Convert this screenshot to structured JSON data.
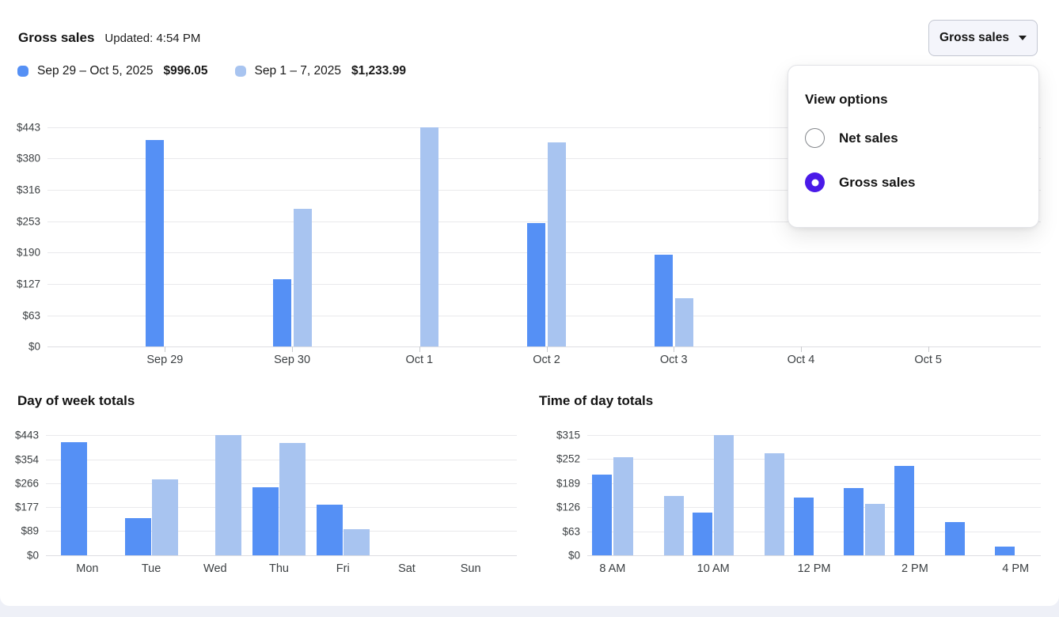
{
  "page": {
    "title": "Gross sales",
    "updated": "Updated: 4:54 PM"
  },
  "legend": {
    "items": [
      {
        "label": "Sep 29 – Oct 5, 2025",
        "value": "$996.05",
        "color": "#5590F5"
      },
      {
        "label": "Sep 1 – 7, 2025",
        "value": "$1,233.99",
        "color": "#A8C4F0"
      }
    ]
  },
  "view_selector": {
    "button_label": "Gross sales",
    "caret_icon": "caret-down-icon",
    "panel_title": "View options",
    "selected_color": "#4A1AE8",
    "options": [
      {
        "label": "Net sales",
        "selected": false
      },
      {
        "label": "Gross sales",
        "selected": true
      }
    ]
  },
  "colors": {
    "bar_current": "#5590F5",
    "bar_previous": "#A8C4F0",
    "gridline": "#E9E9EC",
    "radio_selected": "#4A1AE8",
    "button_bg": "#F4F5FB"
  },
  "chart_data": [
    {
      "type": "bar",
      "title": "Gross sales",
      "categories": [
        "Sep 29",
        "Sep 30",
        "Oct 1",
        "Oct 2",
        "Oct 3",
        "Oct 4",
        "Oct 5"
      ],
      "series": [
        {
          "name": "Sep 29 – Oct 5, 2025",
          "color": "#5590F5",
          "total": "$996.05",
          "values": [
            418,
            136,
            null,
            250,
            186,
            null,
            null
          ]
        },
        {
          "name": "Sep 1 – 7, 2025",
          "color": "#A8C4F0",
          "total": "$1,233.99",
          "values": [
            null,
            278,
            443,
            413,
            97,
            null,
            null
          ]
        }
      ],
      "ylabel": "",
      "xlabel": "",
      "ylim": [
        0,
        443
      ],
      "yticks": [
        443,
        380,
        316,
        253,
        190,
        127,
        63,
        0
      ],
      "grid": true,
      "legend_position": "top-left"
    },
    {
      "type": "bar",
      "title": "Day of week totals",
      "categories": [
        "Mon",
        "Tue",
        "Wed",
        "Thu",
        "Fri",
        "Sat",
        "Sun"
      ],
      "series": [
        {
          "name": "Sep 29 – Oct 5, 2025",
          "color": "#5590F5",
          "values": [
            418,
            136,
            null,
            251,
            186,
            null,
            null
          ]
        },
        {
          "name": "Sep 1 – 7, 2025",
          "color": "#A8C4F0",
          "values": [
            null,
            280,
            443,
            414,
            97,
            null,
            null
          ]
        }
      ],
      "ylabel": "",
      "xlabel": "",
      "ylim": [
        0,
        443
      ],
      "yticks": [
        443,
        354,
        266,
        177,
        89,
        0
      ],
      "grid": true
    },
    {
      "type": "bar",
      "title": "Time of day totals",
      "categories": [
        "8 AM",
        "",
        "10 AM",
        "",
        "12 PM",
        "",
        "2 PM",
        "",
        "4 PM"
      ],
      "series": [
        {
          "name": "Sep 29 – Oct 5, 2025",
          "color": "#5590F5",
          "values": [
            211,
            null,
            112,
            null,
            152,
            176,
            235,
            88,
            23
          ]
        },
        {
          "name": "Sep 1 – 7, 2025",
          "color": "#A8C4F0",
          "values": [
            258,
            155,
            315,
            268,
            null,
            135,
            null,
            null,
            null
          ]
        }
      ],
      "ylabel": "",
      "xlabel": "",
      "ylim": [
        0,
        315
      ],
      "yticks": [
        315,
        252,
        189,
        126,
        63,
        0
      ],
      "grid": true
    }
  ]
}
